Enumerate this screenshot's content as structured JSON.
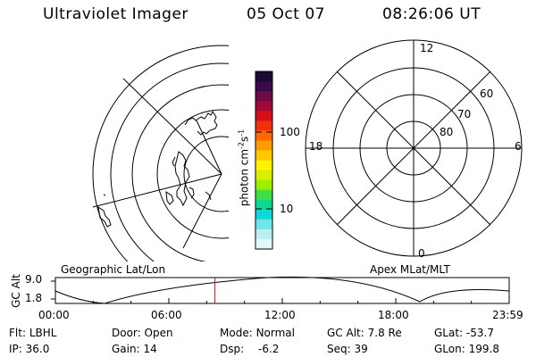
{
  "header": {
    "instrument": "Ultraviolet Imager",
    "date": "05 Oct 07",
    "time": "08:26:06 UT"
  },
  "colorbar": {
    "ticks": [
      "100",
      "10"
    ],
    "label_base": "photon cm",
    "label_sup1": "-2",
    "label_mid": "s",
    "label_sup2": "-1",
    "colors": [
      "#1a0a33",
      "#3c0a4a",
      "#6e0a4a",
      "#a00a3a",
      "#d4101a",
      "#f03010",
      "#ff6a00",
      "#ff9a00",
      "#ffc800",
      "#fff200",
      "#d8f000",
      "#9af000",
      "#40e040",
      "#10d890",
      "#10d8d8",
      "#70e6ec",
      "#b8f0f4",
      "#e0f8fa"
    ]
  },
  "polar": {
    "mlt_labels": [
      "12",
      "18",
      "6",
      "0"
    ],
    "lat_labels": [
      "60",
      "70",
      "80"
    ]
  },
  "altitude": {
    "left_title": "Geographic Lat/Lon",
    "right_title": "Apex MLat/MLT",
    "axis_label": "GC Alt",
    "y_ticks": [
      "9.0",
      "1.8"
    ],
    "x_ticks": [
      "00:00",
      "06:00",
      "12:00",
      "18:00",
      "23:59"
    ],
    "current_marker_hour": 8.43
  },
  "status": {
    "row1": [
      {
        "label": "Flt:",
        "value": "LBHL"
      },
      {
        "label": "Door:",
        "value": "Open"
      },
      {
        "label": "Mode:",
        "value": "Normal"
      },
      {
        "label": "GC Alt:",
        "value": "7.8 Re"
      },
      {
        "label": "GLat:",
        "value": "-53.7"
      }
    ],
    "row2": [
      {
        "label": "IP:",
        "value": "36.0"
      },
      {
        "label": "Gain:",
        "value": "14"
      },
      {
        "label": "Dsp:",
        "value": "-6.2"
      },
      {
        "label": "Seq:",
        "value": "39"
      },
      {
        "label": "GLon:",
        "value": "199.8"
      }
    ]
  }
}
